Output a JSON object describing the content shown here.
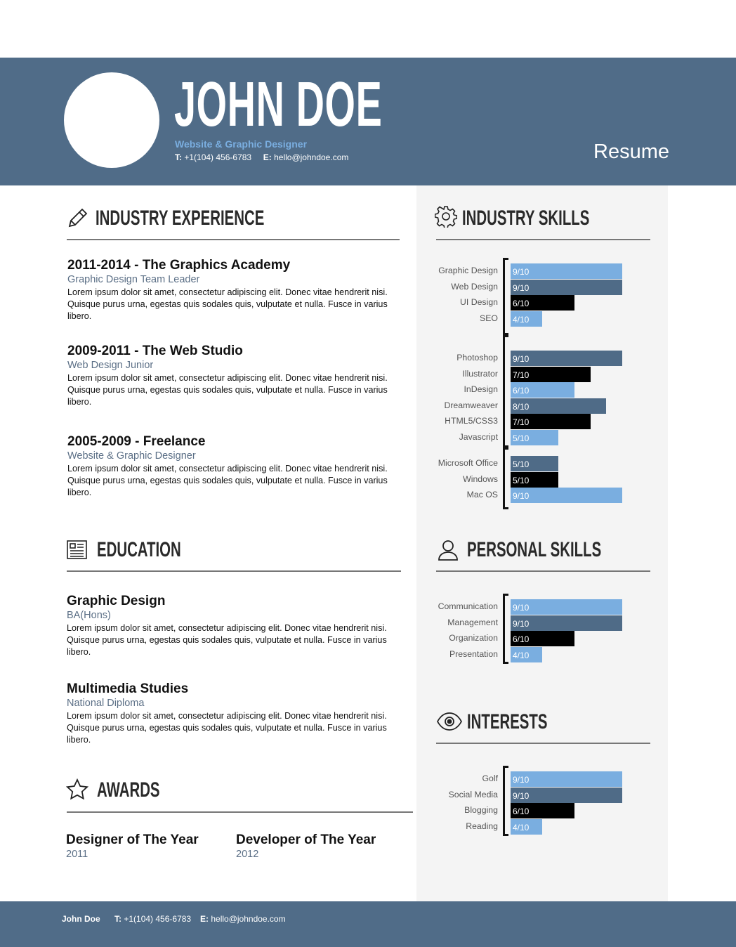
{
  "header": {
    "name": "JOHN DOE",
    "title": "Website & Graphic Designer",
    "phone_label": "T:",
    "phone": "+1(104) 456-6783",
    "email_label": "E:",
    "email": "hello@johndoe.com",
    "doc_label": "Resume"
  },
  "experience": {
    "title": "INDUSTRY EXPERIENCE",
    "icon": "pencil-icon",
    "items": [
      {
        "title": "2011-2014 - The Graphics Academy",
        "subtitle": "Graphic Design Team Leader",
        "body": "Lorem ipsum dolor sit amet, consectetur adipiscing elit. Donec vitae hendrerit nisi. Quisque purus urna, egestas quis sodales quis, vulputate et nulla. Fusce in varius libero."
      },
      {
        "title": "2009-2011 - The Web Studio",
        "subtitle": "Web Design Junior",
        "body": "Lorem ipsum dolor sit amet, consectetur adipiscing elit. Donec vitae hendrerit nisi. Quisque purus urna, egestas quis sodales quis, vulputate et nulla. Fusce in varius libero."
      },
      {
        "title": "2005-2009 - Freelance",
        "subtitle": "Website & Graphic Designer",
        "body": "Lorem ipsum dolor sit amet, consectetur adipiscing elit. Donec vitae hendrerit nisi. Quisque purus urna, egestas quis sodales quis, vulputate et nulla. Fusce in varius libero."
      }
    ]
  },
  "education": {
    "title": "EDUCATION",
    "icon": "certificate-icon",
    "items": [
      {
        "title": "Graphic Design",
        "subtitle": "BA(Hons)",
        "body": "Lorem ipsum dolor sit amet, consectetur adipiscing elit. Donec vitae hendrerit nisi. Quisque purus urna, egestas quis sodales quis, vulputate et nulla. Fusce in varius libero."
      },
      {
        "title": "Multimedia Studies",
        "subtitle": "National Diploma",
        "body": "Lorem ipsum dolor sit amet, consectetur adipiscing elit. Donec vitae hendrerit nisi. Quisque purus urna, egestas quis sodales quis, vulputate et nulla. Fusce in varius libero."
      }
    ]
  },
  "awards": {
    "title": "AWARDS",
    "icon": "star-icon",
    "items": [
      {
        "title": "Designer of The Year",
        "year": "2011"
      },
      {
        "title": "Developer of The Year",
        "year": "2012"
      }
    ]
  },
  "colors": {
    "header": "#506c88",
    "light": "#7aaee0",
    "slate": "#4f6b87",
    "dark": "#000000",
    "sidebar": "#f4f4f4"
  },
  "skills": {
    "title": "INDUSTRY SKILLS",
    "icon": "gear-icon",
    "groups": [
      [
        {
          "name": "Graphic Design",
          "score": 9,
          "color": "light"
        },
        {
          "name": "Web Design",
          "score": 9,
          "color": "slate"
        },
        {
          "name": "UI Design",
          "score": 6,
          "color": "dark"
        },
        {
          "name": "SEO",
          "score": 4,
          "color": "light"
        }
      ],
      [
        {
          "name": "Photoshop",
          "score": 9,
          "color": "slate"
        },
        {
          "name": "Illustrator",
          "score": 7,
          "color": "dark"
        },
        {
          "name": "InDesign",
          "score": 6,
          "color": "light"
        },
        {
          "name": "Dreamweaver",
          "score": 8,
          "color": "slate"
        },
        {
          "name": "HTML5/CSS3",
          "score": 7,
          "color": "dark"
        },
        {
          "name": "Javascript",
          "score": 5,
          "color": "light"
        }
      ],
      [
        {
          "name": "Microsoft Office",
          "score": 5,
          "color": "slate"
        },
        {
          "name": "Windows",
          "score": 5,
          "color": "dark"
        },
        {
          "name": "Mac OS",
          "score": 9,
          "color": "light"
        }
      ]
    ]
  },
  "personal": {
    "title": "PERSONAL SKILLS",
    "icon": "user-icon",
    "groups": [
      [
        {
          "name": "Communication",
          "score": 9,
          "color": "light"
        },
        {
          "name": "Management",
          "score": 9,
          "color": "slate"
        },
        {
          "name": "Organization",
          "score": 6,
          "color": "dark"
        },
        {
          "name": "Presentation",
          "score": 4,
          "color": "light"
        }
      ]
    ]
  },
  "interests": {
    "title": "INTERESTS",
    "icon": "eye-icon",
    "groups": [
      [
        {
          "name": "Golf",
          "score": 9,
          "color": "light"
        },
        {
          "name": "Social Media",
          "score": 9,
          "color": "slate"
        },
        {
          "name": "Blogging",
          "score": 6,
          "color": "dark"
        },
        {
          "name": "Reading",
          "score": 4,
          "color": "light"
        }
      ]
    ]
  },
  "score_max": 10,
  "footer": {
    "name": "John Doe",
    "phone_label": "T:",
    "phone": "+1(104) 456-6783",
    "email_label": "E:",
    "email": "hello@johndoe.com"
  }
}
